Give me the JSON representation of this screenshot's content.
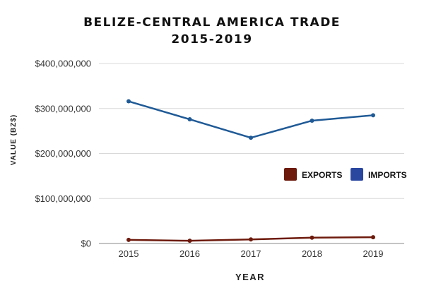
{
  "chart_data": {
    "type": "line",
    "title": [
      "BELIZE-CENTRAL AMERICA TRADE",
      "2015-2019"
    ],
    "xlabel": "YEAR",
    "ylabel": "VALUE (BZ$)",
    "categories": [
      "2015",
      "2016",
      "2017",
      "2018",
      "2019"
    ],
    "ylim": [
      0,
      400000000
    ],
    "yticks": [
      0,
      100000000,
      200000000,
      300000000,
      400000000
    ],
    "ytick_labels": [
      "$0",
      "$100,000,000",
      "$200,000,000",
      "$300,000,000",
      "$400,000,000"
    ],
    "grid": true,
    "legend_position": "right",
    "series": [
      {
        "name": "EXPORTS",
        "color": "#6d1a0c",
        "values": [
          8000000,
          6000000,
          9000000,
          13000000,
          14000000
        ]
      },
      {
        "name": "IMPORTS",
        "color": "#1f5a96",
        "legend_color": "#2a47a0",
        "values": [
          316000000,
          276000000,
          235000000,
          273000000,
          285000000
        ]
      }
    ]
  }
}
